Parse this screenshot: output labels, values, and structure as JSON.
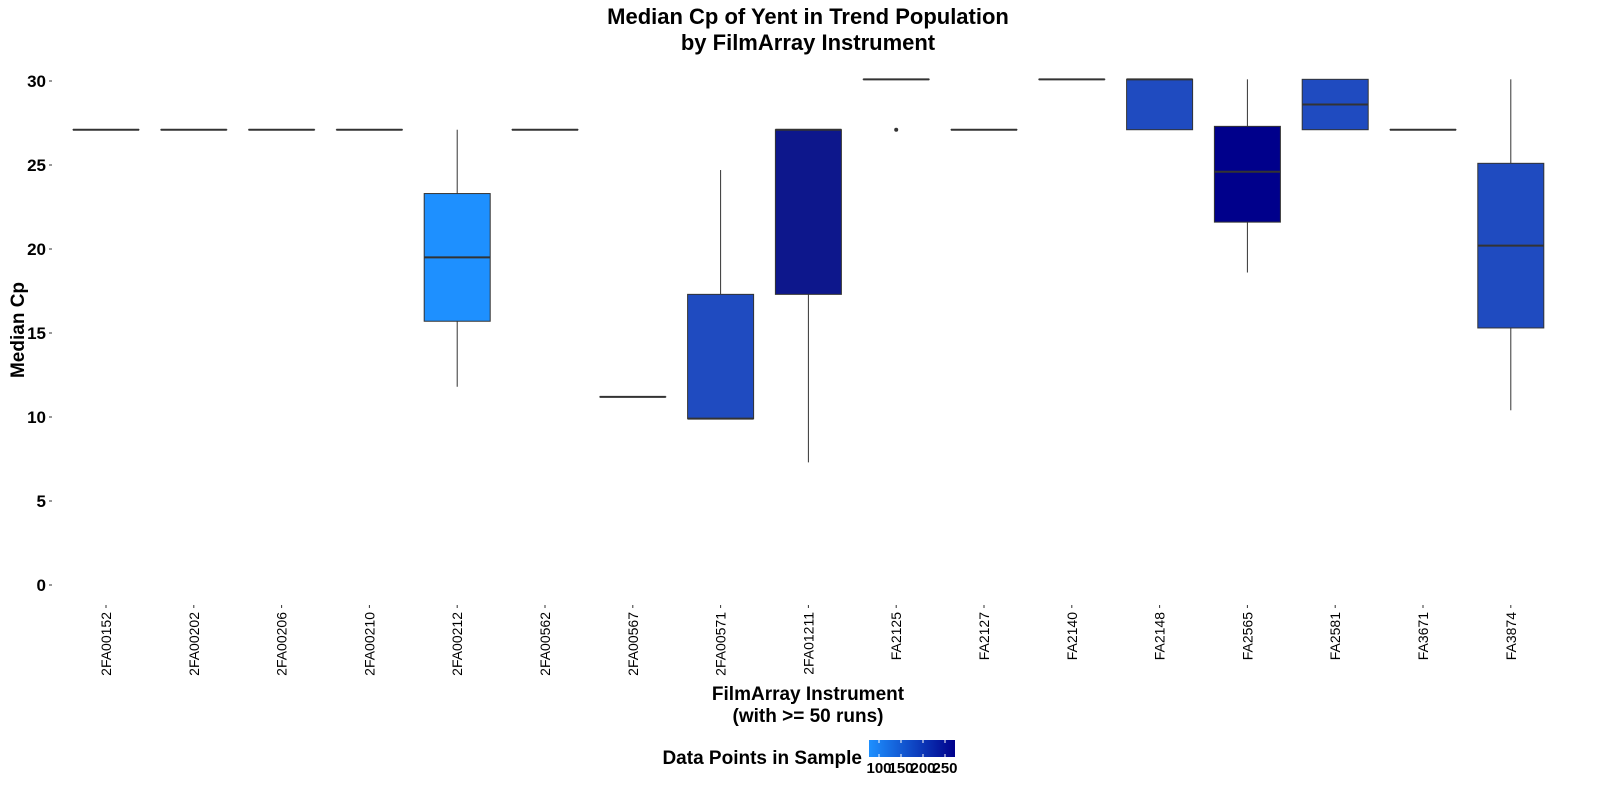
{
  "chart_data": {
    "type": "boxplot",
    "title": [
      "Median Cp of Yent in Trend Population",
      "by FilmArray Instrument"
    ],
    "xlabel": [
      "FilmArray Instrument",
      "(with >= 50 runs)"
    ],
    "ylabel": "Median Cp",
    "ylim": [
      0,
      30
    ],
    "yticks": [
      0,
      5,
      10,
      15,
      20,
      25,
      30
    ],
    "grid": false,
    "legend": {
      "title": "Data Points in Sample",
      "position": "bottom",
      "type": "colorbar",
      "tick_labels": [
        "100",
        "150",
        "200",
        "250"
      ],
      "colors": [
        "#1e90ff",
        "#00008b"
      ]
    },
    "categories": [
      "2FA00152",
      "2FA00202",
      "2FA00206",
      "2FA00210",
      "2FA00212",
      "2FA00562",
      "2FA00567",
      "2FA00571",
      "2FA01211",
      "FA2125",
      "FA2127",
      "FA2140",
      "FA2148",
      "FA2565",
      "FA2581",
      "FA3671",
      "FA3874"
    ],
    "boxes": [
      {
        "min": 27.1,
        "q1": 27.1,
        "median": 27.1,
        "q3": 27.1,
        "max": 27.1,
        "outliers": [],
        "color": "#1e90ff"
      },
      {
        "min": 27.1,
        "q1": 27.1,
        "median": 27.1,
        "q3": 27.1,
        "max": 27.1,
        "outliers": [],
        "color": "#1e90ff"
      },
      {
        "min": 27.1,
        "q1": 27.1,
        "median": 27.1,
        "q3": 27.1,
        "max": 27.1,
        "outliers": [],
        "color": "#1e90ff"
      },
      {
        "min": 27.1,
        "q1": 27.1,
        "median": 27.1,
        "q3": 27.1,
        "max": 27.1,
        "outliers": [],
        "color": "#1e90ff"
      },
      {
        "min": 11.8,
        "q1": 15.7,
        "median": 19.5,
        "q3": 23.3,
        "max": 27.1,
        "outliers": [],
        "color": "#1e90ff"
      },
      {
        "min": 27.1,
        "q1": 27.1,
        "median": 27.1,
        "q3": 27.1,
        "max": 27.1,
        "outliers": [],
        "color": "#1e90ff"
      },
      {
        "min": 11.2,
        "q1": 11.2,
        "median": 11.2,
        "q3": 11.2,
        "max": 11.2,
        "outliers": [],
        "color": "#1e90ff"
      },
      {
        "min": 9.9,
        "q1": 9.9,
        "median": 9.9,
        "q3": 17.3,
        "max": 24.7,
        "outliers": [],
        "color": "#1f4bc0"
      },
      {
        "min": 7.3,
        "q1": 17.3,
        "median": 27.1,
        "q3": 27.1,
        "max": 27.1,
        "outliers": [],
        "color": "#0d178c"
      },
      {
        "min": 30.1,
        "q1": 30.1,
        "median": 30.1,
        "q3": 30.1,
        "max": 30.1,
        "outliers": [
          27.1
        ],
        "color": "#1e90ff"
      },
      {
        "min": 27.1,
        "q1": 27.1,
        "median": 27.1,
        "q3": 27.1,
        "max": 27.1,
        "outliers": [],
        "color": "#1e90ff"
      },
      {
        "min": 30.1,
        "q1": 30.1,
        "median": 30.1,
        "q3": 30.1,
        "max": 30.1,
        "outliers": [],
        "color": "#1e90ff"
      },
      {
        "min": 27.1,
        "q1": 27.1,
        "median": 30.1,
        "q3": 30.1,
        "max": 30.1,
        "outliers": [],
        "color": "#1f4bc0"
      },
      {
        "min": 18.6,
        "q1": 21.6,
        "median": 24.6,
        "q3": 27.3,
        "max": 30.1,
        "outliers": [],
        "color": "#00008b"
      },
      {
        "min": 27.1,
        "q1": 27.1,
        "median": 28.6,
        "q3": 30.1,
        "max": 30.1,
        "outliers": [],
        "color": "#1f4bc0"
      },
      {
        "min": 27.1,
        "q1": 27.1,
        "median": 27.1,
        "q3": 27.1,
        "max": 27.1,
        "outliers": [],
        "color": "#1e90ff"
      },
      {
        "min": 10.4,
        "q1": 15.3,
        "median": 20.2,
        "q3": 25.1,
        "max": 30.1,
        "outliers": [],
        "color": "#1f4bc0"
      }
    ]
  }
}
